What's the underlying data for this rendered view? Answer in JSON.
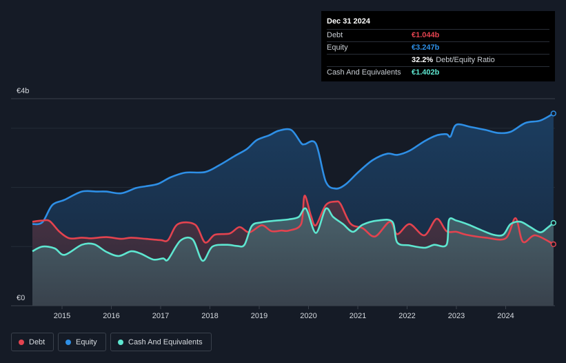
{
  "chart_data": {
    "type": "area",
    "currency": "€",
    "y_axis_labels": [
      "€4b",
      "€0"
    ],
    "ylim": [
      0,
      3.5
    ],
    "xlim": [
      2014.4,
      2025.0
    ],
    "x_ticks": [
      2015,
      2016,
      2017,
      2018,
      2019,
      2020,
      2021,
      2022,
      2023,
      2024
    ],
    "x_tick_labels": [
      "2015",
      "2016",
      "2017",
      "2018",
      "2019",
      "2020",
      "2021",
      "2022",
      "2023",
      "2024"
    ],
    "series": [
      {
        "name": "Debt",
        "color": "#e3434f",
        "points": [
          [
            2014.4,
            1.42
          ],
          [
            2014.6,
            1.44
          ],
          [
            2014.75,
            1.43
          ],
          [
            2014.95,
            1.25
          ],
          [
            2015.15,
            1.14
          ],
          [
            2015.4,
            1.15
          ],
          [
            2015.6,
            1.14
          ],
          [
            2015.9,
            1.16
          ],
          [
            2016.2,
            1.13
          ],
          [
            2016.4,
            1.15
          ],
          [
            2016.7,
            1.13
          ],
          [
            2017.0,
            1.11
          ],
          [
            2017.15,
            1.11
          ],
          [
            2017.35,
            1.38
          ],
          [
            2017.7,
            1.37
          ],
          [
            2017.9,
            1.07
          ],
          [
            2018.1,
            1.2
          ],
          [
            2018.4,
            1.22
          ],
          [
            2018.6,
            1.33
          ],
          [
            2018.8,
            1.24
          ],
          [
            2019.05,
            1.36
          ],
          [
            2019.25,
            1.26
          ],
          [
            2019.45,
            1.27
          ],
          [
            2019.6,
            1.27
          ],
          [
            2019.85,
            1.38
          ],
          [
            2019.92,
            1.86
          ],
          [
            2020.05,
            1.52
          ],
          [
            2020.15,
            1.36
          ],
          [
            2020.35,
            1.7
          ],
          [
            2020.55,
            1.76
          ],
          [
            2020.65,
            1.72
          ],
          [
            2020.85,
            1.39
          ],
          [
            2021.1,
            1.31
          ],
          [
            2021.35,
            1.17
          ],
          [
            2021.65,
            1.42
          ],
          [
            2021.8,
            1.21
          ],
          [
            2022.05,
            1.38
          ],
          [
            2022.35,
            1.19
          ],
          [
            2022.6,
            1.47
          ],
          [
            2022.8,
            1.26
          ],
          [
            2023.0,
            1.25
          ],
          [
            2023.2,
            1.2
          ],
          [
            2023.6,
            1.15
          ],
          [
            2024.0,
            1.14
          ],
          [
            2024.2,
            1.48
          ],
          [
            2024.35,
            1.08
          ],
          [
            2024.6,
            1.19
          ],
          [
            2024.97,
            1.04
          ]
        ]
      },
      {
        "name": "Equity",
        "color": "#2e8fe6",
        "points": [
          [
            2014.4,
            1.38
          ],
          [
            2014.6,
            1.41
          ],
          [
            2014.8,
            1.7
          ],
          [
            2015.05,
            1.79
          ],
          [
            2015.4,
            1.93
          ],
          [
            2015.7,
            1.93
          ],
          [
            2015.9,
            1.93
          ],
          [
            2016.2,
            1.9
          ],
          [
            2016.5,
            1.99
          ],
          [
            2016.7,
            2.02
          ],
          [
            2016.95,
            2.06
          ],
          [
            2017.2,
            2.17
          ],
          [
            2017.5,
            2.25
          ],
          [
            2017.9,
            2.26
          ],
          [
            2018.2,
            2.38
          ],
          [
            2018.5,
            2.53
          ],
          [
            2018.75,
            2.65
          ],
          [
            2018.95,
            2.8
          ],
          [
            2019.2,
            2.88
          ],
          [
            2019.4,
            2.96
          ],
          [
            2019.65,
            2.97
          ],
          [
            2019.85,
            2.75
          ],
          [
            2019.92,
            2.73
          ],
          [
            2020.15,
            2.74
          ],
          [
            2020.35,
            2.1
          ],
          [
            2020.55,
            1.98
          ],
          [
            2020.75,
            2.05
          ],
          [
            2021.0,
            2.25
          ],
          [
            2021.3,
            2.46
          ],
          [
            2021.6,
            2.57
          ],
          [
            2021.8,
            2.55
          ],
          [
            2022.05,
            2.62
          ],
          [
            2022.35,
            2.78
          ],
          [
            2022.6,
            2.88
          ],
          [
            2022.8,
            2.9
          ],
          [
            2022.88,
            2.86
          ],
          [
            2023.0,
            3.06
          ],
          [
            2023.3,
            3.02
          ],
          [
            2023.6,
            2.97
          ],
          [
            2023.85,
            2.92
          ],
          [
            2024.1,
            2.94
          ],
          [
            2024.4,
            3.09
          ],
          [
            2024.7,
            3.13
          ],
          [
            2024.97,
            3.25
          ]
        ]
      },
      {
        "name": "Cash And Equivalents",
        "color": "#5ee6d0",
        "points": [
          [
            2014.4,
            0.92
          ],
          [
            2014.6,
            1.0
          ],
          [
            2014.85,
            0.97
          ],
          [
            2015.05,
            0.86
          ],
          [
            2015.4,
            1.03
          ],
          [
            2015.65,
            1.04
          ],
          [
            2015.9,
            0.91
          ],
          [
            2016.15,
            0.84
          ],
          [
            2016.4,
            0.92
          ],
          [
            2016.6,
            0.88
          ],
          [
            2016.85,
            0.78
          ],
          [
            2017.05,
            0.8
          ],
          [
            2017.15,
            0.78
          ],
          [
            2017.4,
            1.1
          ],
          [
            2017.65,
            1.12
          ],
          [
            2017.85,
            0.76
          ],
          [
            2018.05,
            1.0
          ],
          [
            2018.35,
            1.03
          ],
          [
            2018.55,
            1.01
          ],
          [
            2018.7,
            1.03
          ],
          [
            2018.85,
            1.35
          ],
          [
            2019.05,
            1.41
          ],
          [
            2019.35,
            1.44
          ],
          [
            2019.6,
            1.46
          ],
          [
            2019.8,
            1.5
          ],
          [
            2019.95,
            1.64
          ],
          [
            2020.15,
            1.23
          ],
          [
            2020.35,
            1.64
          ],
          [
            2020.5,
            1.5
          ],
          [
            2020.7,
            1.38
          ],
          [
            2020.9,
            1.25
          ],
          [
            2021.1,
            1.37
          ],
          [
            2021.4,
            1.44
          ],
          [
            2021.7,
            1.42
          ],
          [
            2021.8,
            1.07
          ],
          [
            2022.05,
            1.02
          ],
          [
            2022.35,
            0.98
          ],
          [
            2022.55,
            1.03
          ],
          [
            2022.8,
            1.03
          ],
          [
            2022.85,
            1.45
          ],
          [
            2023.0,
            1.44
          ],
          [
            2023.25,
            1.37
          ],
          [
            2023.5,
            1.28
          ],
          [
            2023.75,
            1.2
          ],
          [
            2023.95,
            1.2
          ],
          [
            2024.1,
            1.38
          ],
          [
            2024.3,
            1.42
          ],
          [
            2024.5,
            1.33
          ],
          [
            2024.7,
            1.24
          ],
          [
            2024.85,
            1.32
          ],
          [
            2024.97,
            1.4
          ]
        ]
      }
    ]
  },
  "tooltip": {
    "date": "Dec 31 2024",
    "rows": [
      {
        "label": "Debt",
        "value": "€1.044b",
        "color": "#e3434f"
      },
      {
        "label": "Equity",
        "value": "€3.247b",
        "color": "#2e8fe6"
      },
      {
        "label": "",
        "value": "32.2%",
        "extra": "Debt/Equity Ratio",
        "color": "#ffffff"
      },
      {
        "label": "Cash And Equivalents",
        "value": "€1.402b",
        "color": "#5ee6d0"
      }
    ]
  },
  "legend": [
    {
      "label": "Debt",
      "color": "#e3434f"
    },
    {
      "label": "Equity",
      "color": "#2e8fe6"
    },
    {
      "label": "Cash And Equivalents",
      "color": "#5ee6d0"
    }
  ]
}
